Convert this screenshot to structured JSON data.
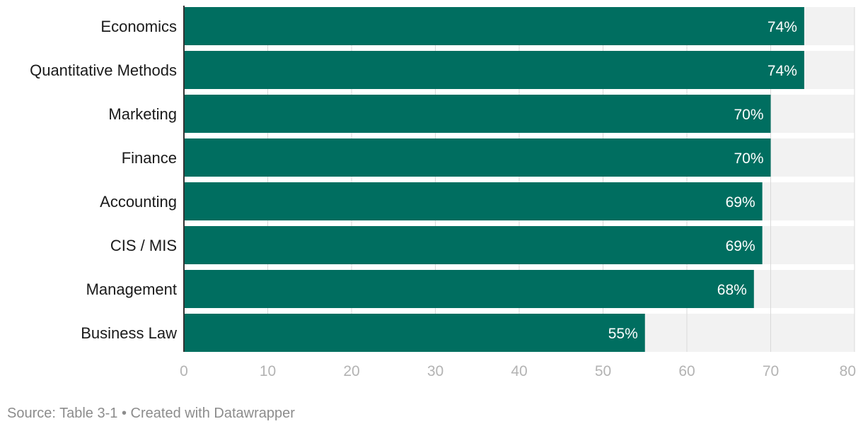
{
  "chart_data": {
    "type": "bar",
    "orientation": "horizontal",
    "categories": [
      "Economics",
      "Quantitative Methods",
      "Marketing",
      "Finance",
      "Accounting",
      "CIS / MIS",
      "Management",
      "Business Law"
    ],
    "values": [
      74,
      74,
      70,
      70,
      69,
      69,
      68,
      55
    ],
    "value_labels": [
      "74%",
      "74%",
      "70%",
      "70%",
      "69%",
      "69%",
      "68%",
      "55%"
    ],
    "xlim": [
      0,
      80
    ],
    "xticks": [
      0,
      10,
      20,
      30,
      40,
      50,
      60,
      70,
      80
    ],
    "bar_color": "#006e60",
    "track_color": "#f2f2f2",
    "grid": true
  },
  "footer": {
    "source": "Source: Table 3-1",
    "separator": "•",
    "credit": "Created with Datawrapper"
  }
}
